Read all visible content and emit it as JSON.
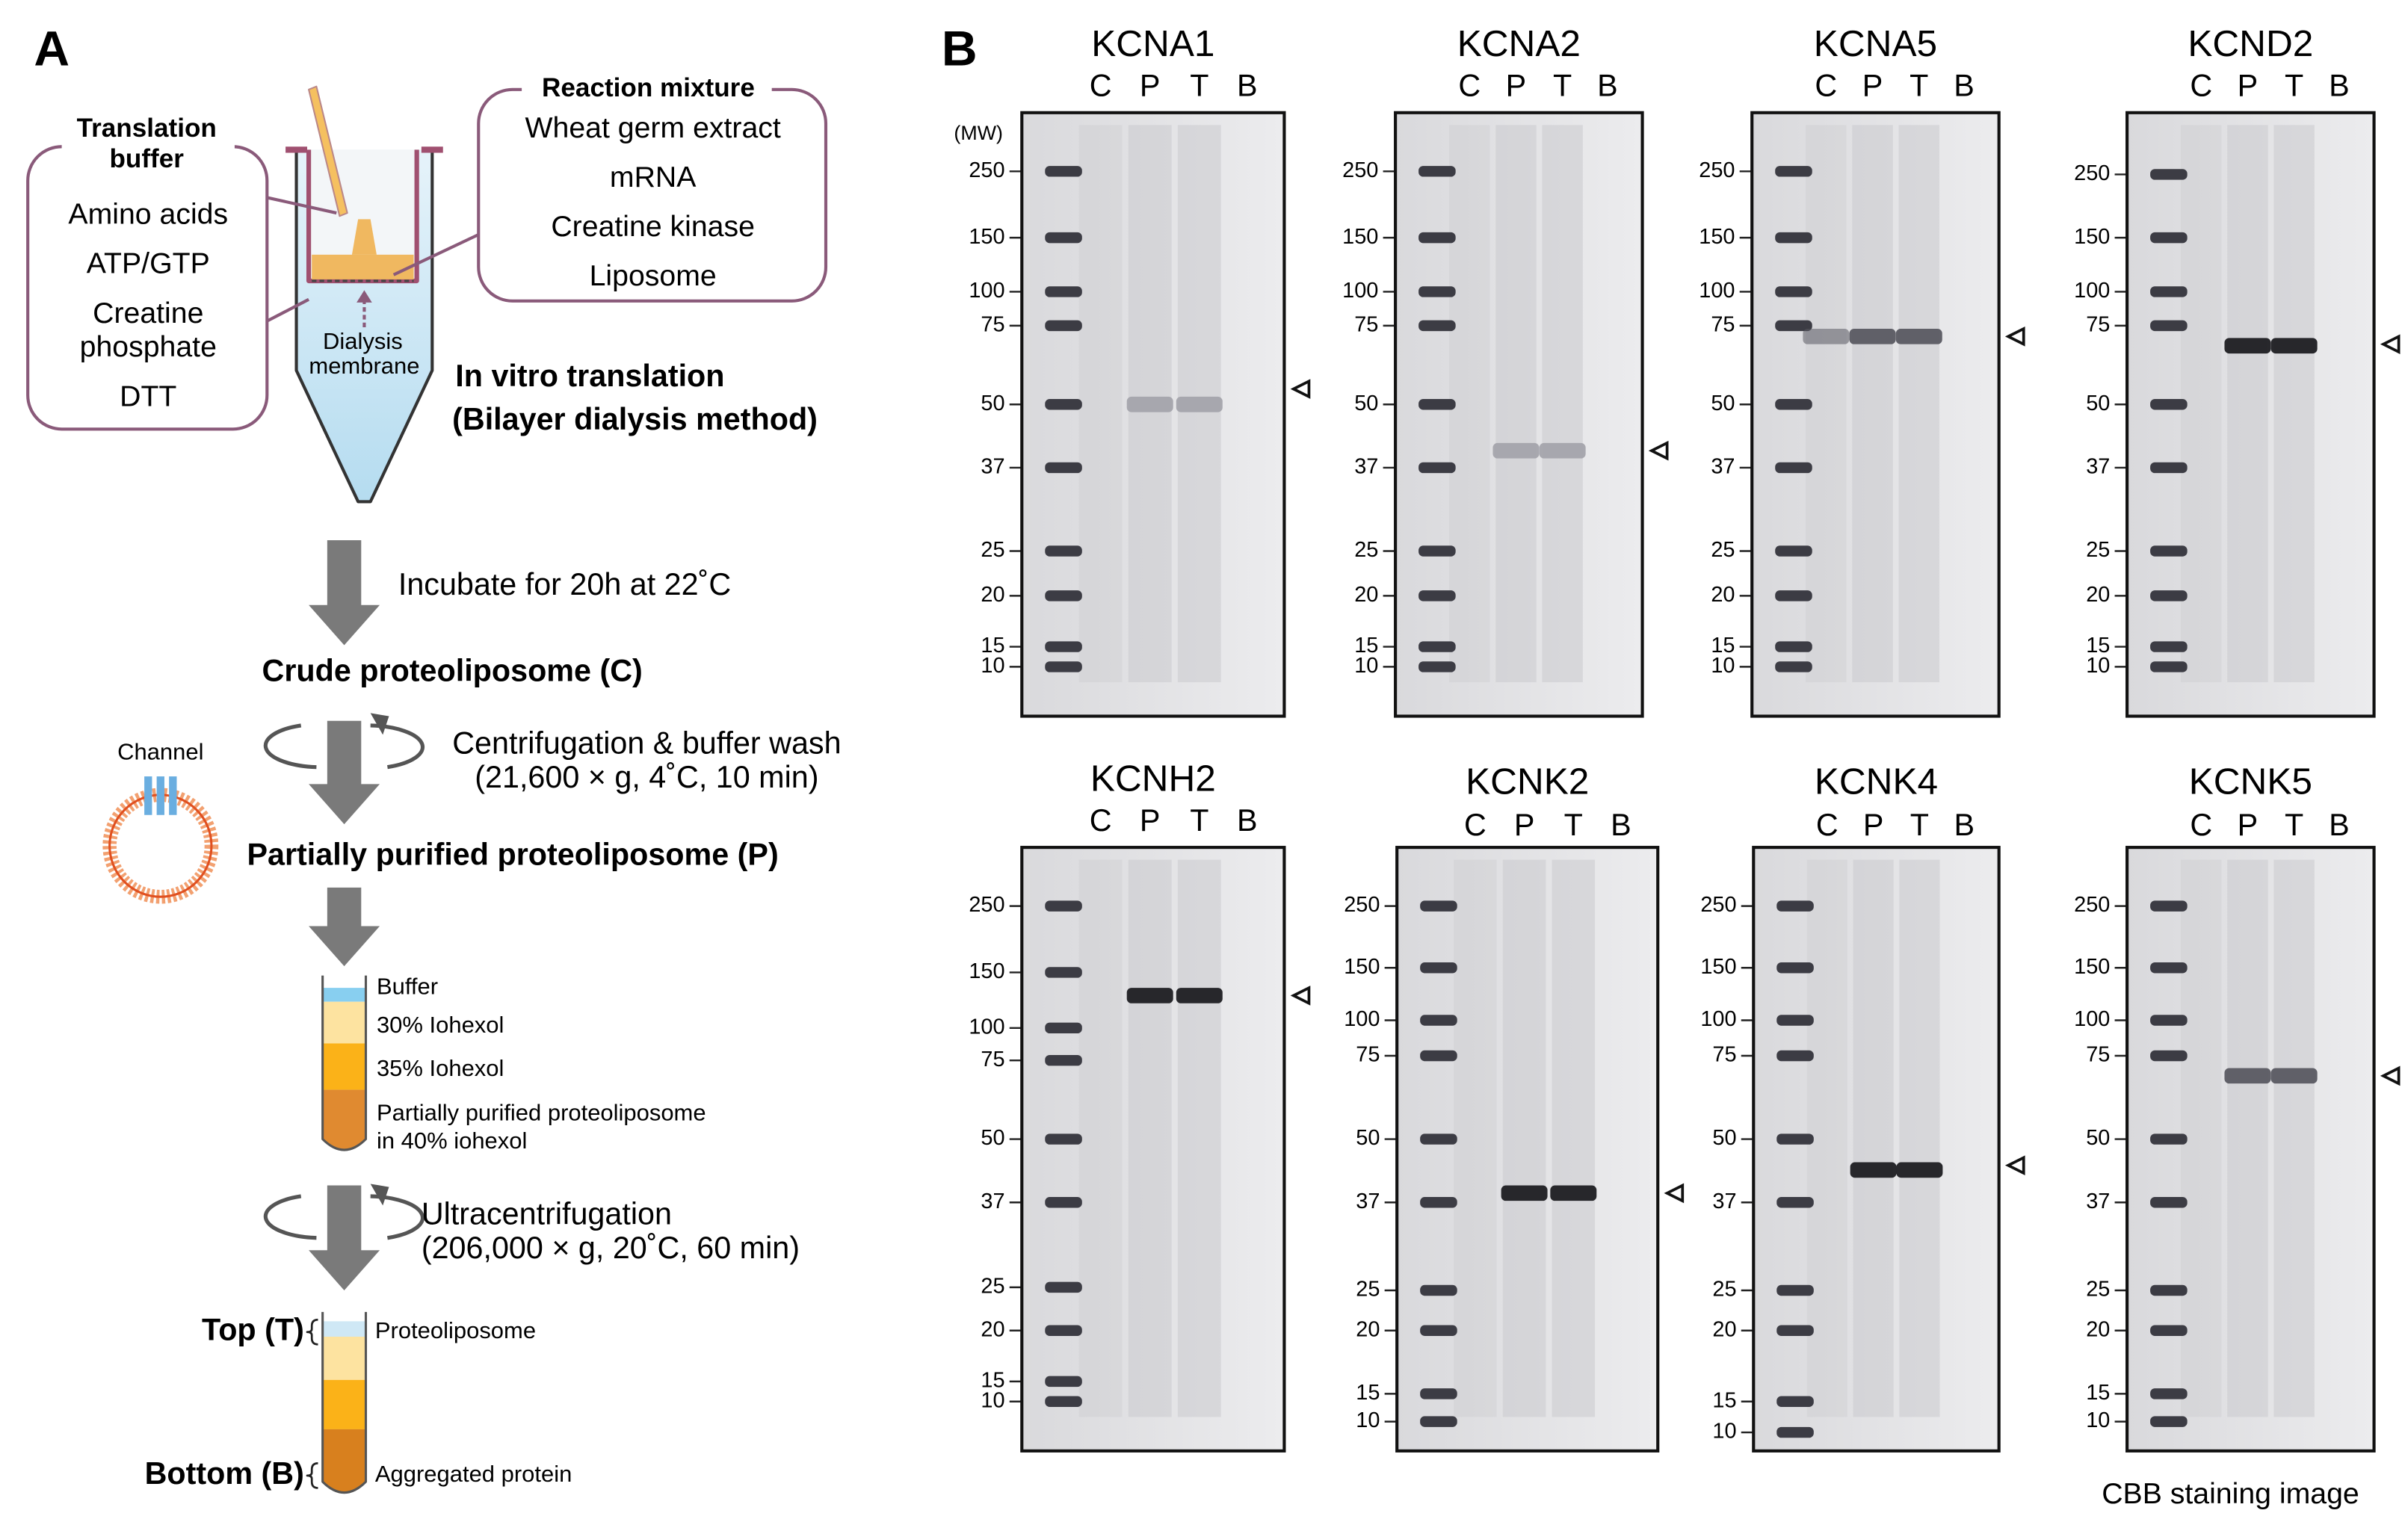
{
  "panel_a": {
    "label": "A",
    "translation_buffer": {
      "title_lines": [
        "Translation",
        "buffer"
      ],
      "items": [
        "Amino acids",
        "ATP/GTP",
        "Creatine",
        "phosphate",
        "DTT"
      ]
    },
    "reaction_mixture": {
      "title": "Reaction mixture",
      "items": [
        "Wheat germ extract",
        "mRNA",
        "Creatine kinase",
        "Liposome"
      ]
    },
    "membrane_lines": [
      "Dialysis",
      "membrane"
    ],
    "method_lines": [
      "In vitro translation",
      "(Bilayer dialysis method)"
    ],
    "step1": "Incubate for 20h at 22˚C",
    "crude": "Crude proteoliposome (C)",
    "step2_lines": [
      "Centrifugation & buffer wash",
      "(21,600 × g, 4˚C, 10 min)"
    ],
    "channel": "Channel",
    "partial": "Partially purified proteoliposome (P)",
    "gradient_layers": [
      "Buffer",
      "30% Iohexol",
      "35% Iohexol",
      "Partially purified proteoliposome",
      "in 40% iohexol"
    ],
    "step3_lines": [
      "Ultracentrifugation",
      "(206,000 × g, 20˚C, 60 min)"
    ],
    "top": {
      "label": "Top (T)",
      "content": "Proteoliposome"
    },
    "bottom": {
      "label": "Bottom (B)",
      "content": "Aggregated protein"
    }
  },
  "panel_b": {
    "label": "B",
    "mw_label": "(MW)",
    "lanes": [
      "C",
      "P",
      "T",
      "B"
    ],
    "gels": [
      {
        "name": "KCNA1",
        "mw_ticks": [
          250,
          150,
          100,
          75,
          50,
          37,
          25,
          20,
          15,
          10
        ]
      },
      {
        "name": "KCNA2",
        "mw_ticks": [
          250,
          150,
          100,
          75,
          50,
          37,
          25,
          20,
          15,
          10
        ]
      },
      {
        "name": "KCNA5",
        "mw_ticks": [
          250,
          150,
          100,
          75,
          50,
          37,
          25,
          20,
          15,
          10
        ]
      },
      {
        "name": "KCND2",
        "mw_ticks": [
          250,
          150,
          100,
          75,
          50,
          37,
          25,
          20,
          15,
          10
        ]
      },
      {
        "name": "KCNH2",
        "mw_ticks": [
          250,
          150,
          100,
          75,
          50,
          37,
          25,
          20,
          15,
          10
        ]
      },
      {
        "name": "KCNK2",
        "mw_ticks": [
          250,
          150,
          100,
          75,
          50,
          37,
          25,
          20,
          15,
          10
        ]
      },
      {
        "name": "KCNK4",
        "mw_ticks": [
          250,
          150,
          100,
          75,
          50,
          37,
          25,
          20,
          15,
          10
        ]
      },
      {
        "name": "KCNK5",
        "mw_ticks": [
          250,
          150,
          100,
          75,
          50,
          37,
          25,
          20,
          15,
          10
        ]
      }
    ],
    "footer": "CBB staining image"
  }
}
